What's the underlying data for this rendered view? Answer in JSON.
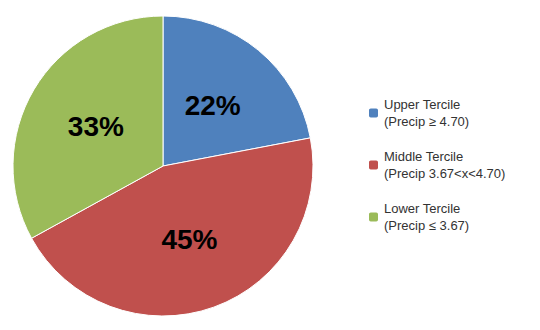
{
  "chart_data": {
    "type": "pie",
    "categories": [
      "Upper Tercile\n(Precip ≥ 4.70)",
      "Middle Tercile\n(Precip 3.67<x<4.70)",
      "Lower Tercile\n(Precip ≤ 3.67)"
    ],
    "values": [
      22,
      45,
      33
    ],
    "value_labels": [
      "22%",
      "45%",
      "33%"
    ],
    "colors": [
      "#4f81bd",
      "#c0504d",
      "#9bbb59"
    ],
    "data_labels": true,
    "legend": "right"
  }
}
